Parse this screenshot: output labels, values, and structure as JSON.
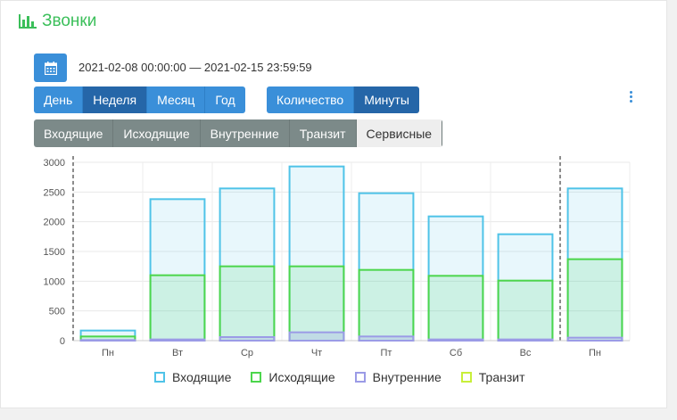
{
  "header": {
    "title": "Звонки",
    "icon": "bar-chart-icon"
  },
  "date_range": "2021-02-08 00:00:00 — 2021-02-15 23:59:59",
  "period_tabs": [
    {
      "label": "День",
      "active": false
    },
    {
      "label": "Неделя",
      "active": true
    },
    {
      "label": "Месяц",
      "active": false
    },
    {
      "label": "Год",
      "active": false
    }
  ],
  "metric_tabs": [
    {
      "label": "Количество",
      "active": false
    },
    {
      "label": "Минуты",
      "active": true
    }
  ],
  "type_tabs": [
    {
      "label": "Входящие",
      "active": false
    },
    {
      "label": "Исходящие",
      "active": false
    },
    {
      "label": "Внутренние",
      "active": false
    },
    {
      "label": "Транзит",
      "active": false
    },
    {
      "label": "Сервисные",
      "active": true
    }
  ],
  "chart_data": {
    "type": "bar",
    "categories": [
      "Пн",
      "Вт",
      "Ср",
      "Чт",
      "Пт",
      "Сб",
      "Вс",
      "Пн"
    ],
    "series": [
      {
        "name": "Входящие",
        "values": [
          170,
          2380,
          2560,
          2930,
          2480,
          2090,
          1790,
          2560
        ],
        "color": "#4fc3e8"
      },
      {
        "name": "Исходящие",
        "values": [
          70,
          1100,
          1250,
          1250,
          1190,
          1090,
          1010,
          1370
        ],
        "color": "#4cd64c"
      },
      {
        "name": "Внутренние",
        "values": [
          10,
          20,
          60,
          140,
          70,
          20,
          20,
          50
        ],
        "color": "#9b9be6"
      },
      {
        "name": "Транзит",
        "values": [
          0,
          0,
          0,
          0,
          0,
          0,
          0,
          0
        ],
        "color": "#c8ef3a"
      }
    ],
    "ylim": [
      0,
      3000
    ],
    "yticks": [
      0,
      500,
      1000,
      1500,
      2000,
      2500,
      3000
    ],
    "grid": true,
    "legend": "bottom"
  }
}
